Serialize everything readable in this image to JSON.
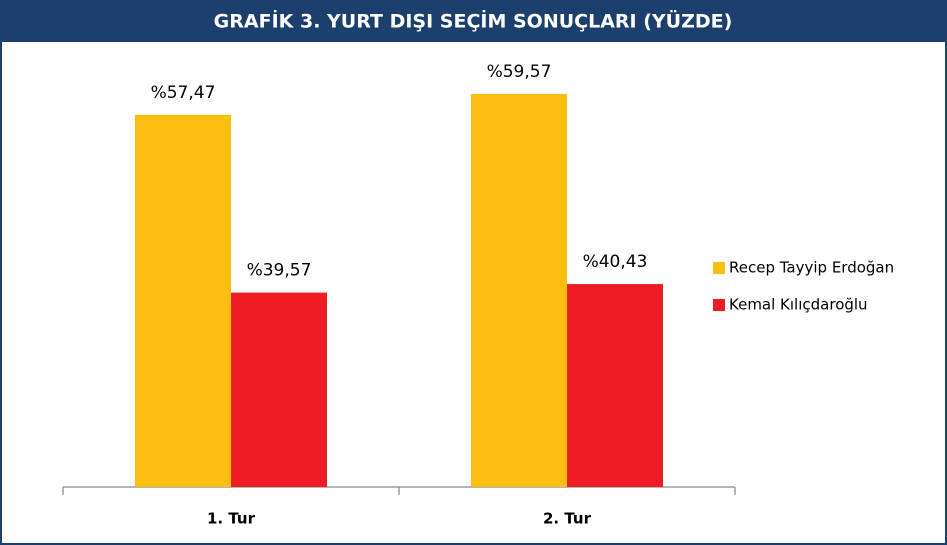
{
  "chart_data": {
    "type": "bar",
    "title": "GRAFİK 3. YURT DIŞI SEÇİM SONUÇLARI (YÜZDE)",
    "categories": [
      "1. Tur",
      "2. Tur"
    ],
    "series": [
      {
        "name": "Recep Tayyip Erdoğan",
        "color": "#fdbe12",
        "values": [
          57.47,
          59.57
        ],
        "value_labels": [
          "%57,47",
          "%59,57"
        ]
      },
      {
        "name": "Kemal Kılıçdaroğlu",
        "color": "#ee1c25",
        "values": [
          39.57,
          40.43
        ],
        "value_labels": [
          "%39,57",
          "%40,43"
        ]
      }
    ],
    "ylim": [
      20,
      65
    ],
    "legend": "right"
  }
}
